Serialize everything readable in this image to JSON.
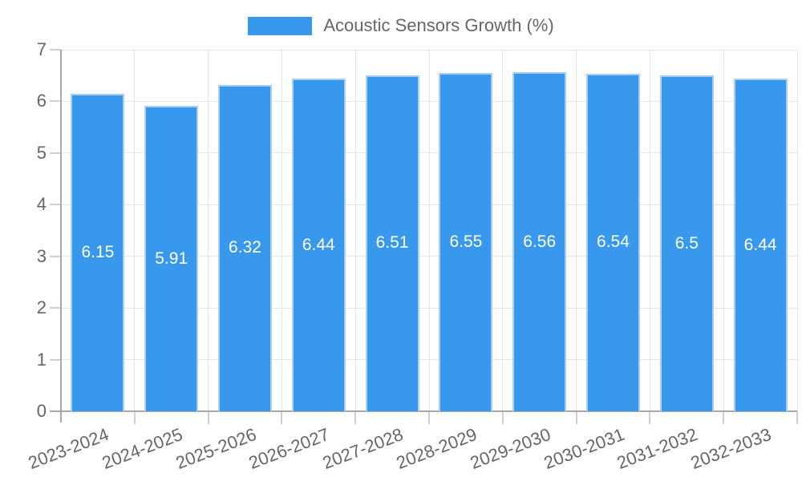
{
  "legend": {
    "label": "Acoustic Sensors Growth (%)"
  },
  "chart_data": {
    "type": "bar",
    "title": "",
    "xlabel": "",
    "ylabel": "",
    "categories": [
      "2023-2024",
      "2024-2025",
      "2025-2026",
      "2026-2027",
      "2027-2028",
      "2028-2029",
      "2029-2030",
      "2030-2031",
      "2031-2032",
      "2032-2033"
    ],
    "series": [
      {
        "name": "Acoustic Sensors Growth (%)",
        "values": [
          6.15,
          5.91,
          6.32,
          6.44,
          6.51,
          6.55,
          6.56,
          6.54,
          6.5,
          6.44
        ]
      }
    ],
    "bar_labels": [
      "6.15",
      "5.91",
      "6.32",
      "6.44",
      "6.51",
      "6.55",
      "6.56",
      "6.54",
      "6.5",
      "6.44"
    ],
    "ylim": [
      0,
      7
    ],
    "yticks": [
      0,
      1,
      2,
      3,
      4,
      5,
      6,
      7
    ],
    "grid": true,
    "legend_position": "top",
    "value_label_position": "middle",
    "colors": {
      "bar": "#3898EC",
      "bar_border": "#A9CFF4",
      "grid": "#E5E5E5",
      "tick": "#CFCFCF",
      "axis": "#A8A8A8",
      "text": "#666666",
      "value_label": "#FFFFFF",
      "background": "#FFFFFF"
    }
  }
}
